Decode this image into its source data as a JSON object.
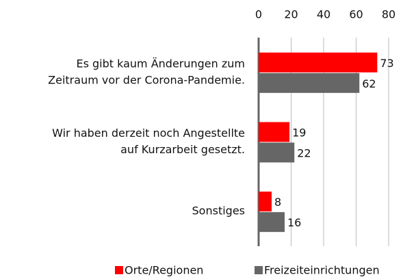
{
  "chart_data": {
    "type": "barh",
    "categories": [
      [
        "Es gibt kaum Änderungen zum",
        "Zeitraum vor der Corona-Pandemie."
      ],
      [
        "Wir haben derzeit noch Angestellte",
        "auf Kurzarbeit gesetzt."
      ],
      [
        "Sonstiges"
      ]
    ],
    "series": [
      {
        "name": "Orte/Regionen",
        "color": "#ff0000",
        "values": [
          73,
          19,
          8
        ]
      },
      {
        "name": "Freizeiteinrichtungen",
        "color": "#666666",
        "values": [
          62,
          22,
          16
        ]
      }
    ],
    "xlim": [
      0,
      80
    ],
    "xticks": [
      0,
      20,
      40,
      60,
      80
    ],
    "grid": true,
    "legend": "bottom"
  }
}
